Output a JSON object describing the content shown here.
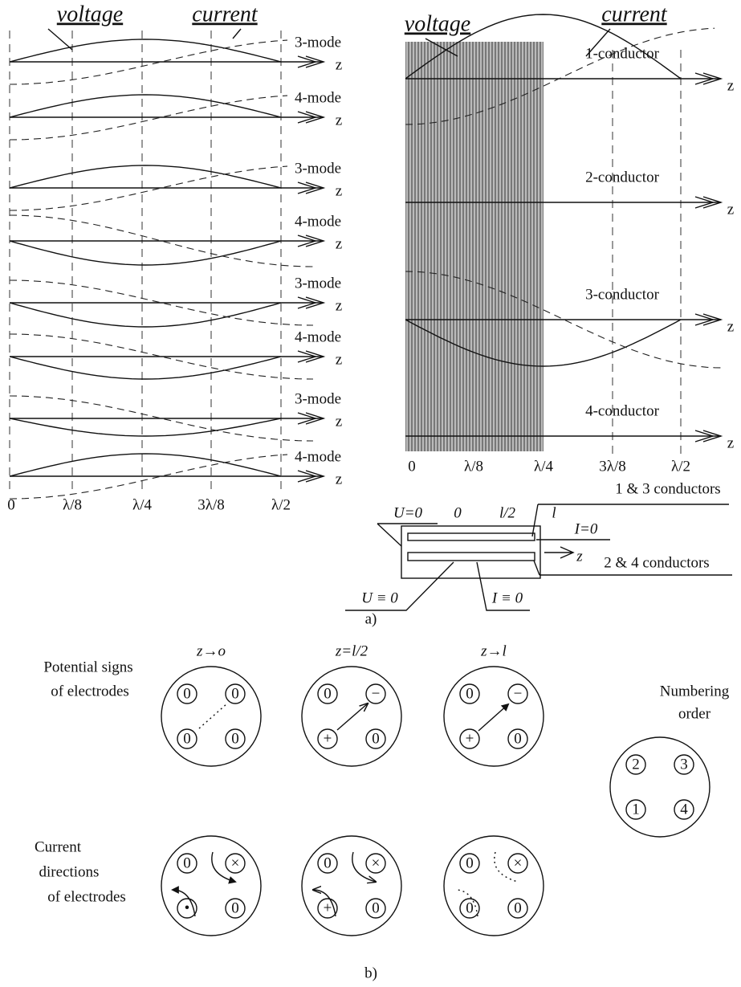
{
  "figure_a": {
    "left_panel": {
      "voltage": "voltage",
      "current": "current",
      "rows": [
        {
          "mode": "3-mode",
          "axis": "z"
        },
        {
          "mode": "4-mode",
          "axis": "z"
        },
        {
          "mode": "3-mode",
          "axis": "z"
        },
        {
          "mode": "4-mode",
          "axis": "z"
        },
        {
          "mode": "3-mode",
          "axis": "z"
        },
        {
          "mode": "4-mode",
          "axis": "z"
        },
        {
          "mode": "3-mode",
          "axis": "z"
        },
        {
          "mode": "4-mode",
          "axis": "z"
        }
      ],
      "ticks": [
        "0",
        "λ/8",
        "λ/4",
        "3λ/8",
        "λ/2"
      ]
    },
    "right_panel": {
      "voltage": "voltage",
      "current": "current",
      "rows": [
        {
          "label": "1-conductor",
          "axis": "z"
        },
        {
          "label": "2-conductor",
          "axis": "z"
        },
        {
          "label": "3-conductor",
          "axis": "z"
        },
        {
          "label": "4-conductor",
          "axis": "z"
        }
      ],
      "ticks": [
        "0",
        "λ/8",
        "λ/4",
        "3λ/8",
        "λ/2"
      ]
    },
    "inset": {
      "top_label": "1 & 3 conductors",
      "bottom_label": "2 & 4 conductors",
      "u_end": "U=0",
      "start": "0",
      "middle": "l/2",
      "end": "l",
      "i_end": "I=0",
      "axis": "z",
      "u_line": "U ≡ 0",
      "i_line": "I ≡ 0"
    },
    "caption": "a)"
  },
  "figure_b": {
    "columns": [
      "z→o",
      "z=l/2",
      "z→l"
    ],
    "potential_label": [
      "Potential signs",
      "of electrodes"
    ],
    "current_label": [
      "Current",
      "directions",
      "of electrodes"
    ],
    "numbering_label": [
      "Numbering",
      "order"
    ],
    "potential_discs": [
      [
        "0",
        "0",
        "0",
        "0"
      ],
      [
        "0",
        "−",
        "+",
        "0"
      ],
      [
        "0",
        "−",
        "+",
        "0"
      ]
    ],
    "current_discs": [
      [
        "0",
        "×",
        "•",
        "0"
      ],
      [
        "0",
        "×",
        "+",
        "0"
      ],
      [
        "0",
        "×",
        "0",
        "0"
      ]
    ],
    "numbering_disc": [
      "2",
      "3",
      "1",
      "4"
    ],
    "caption": "b)"
  }
}
